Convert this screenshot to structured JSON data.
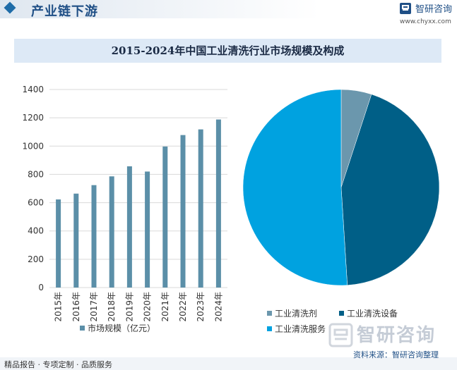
{
  "header": {
    "title": "产业链下游",
    "brand_name": "智研咨询",
    "brand_url": "www.chyxx.com"
  },
  "footer": {
    "left_text": "精品报告 · 专项定制 · 品质服务",
    "source_text": "资料来源：智研咨询整理",
    "watermark_text": "智研咨询"
  },
  "colors": {
    "bar": "#5b8fa8",
    "pie_agent": "#6b97ad",
    "pie_equipment": "#005f87",
    "pie_service": "#00a2e0"
  },
  "chart_data": [
    {
      "type": "bar",
      "title": "2015-2024年中国工业清洗行业市场规模及构成",
      "categories": [
        "2015年",
        "2016年",
        "2017年",
        "2018年",
        "2019年",
        "2020年",
        "2021年",
        "2022年",
        "2023年",
        "2024年"
      ],
      "series": [
        {
          "name": "市场规模（亿元）",
          "values": [
            623,
            664,
            724,
            786,
            857,
            820,
            997,
            1078,
            1118,
            1188
          ]
        }
      ],
      "ylim": [
        0,
        1400
      ],
      "yticks": [
        0,
        200,
        400,
        600,
        800,
        1000,
        1200,
        1400
      ],
      "grid": true,
      "legend": "bottom"
    },
    {
      "type": "pie",
      "labels": [
        "工业清洗剂",
        "工业清洗设备",
        "工业清洗服务"
      ],
      "values": [
        5,
        44,
        51
      ],
      "legend": "bottom"
    }
  ]
}
